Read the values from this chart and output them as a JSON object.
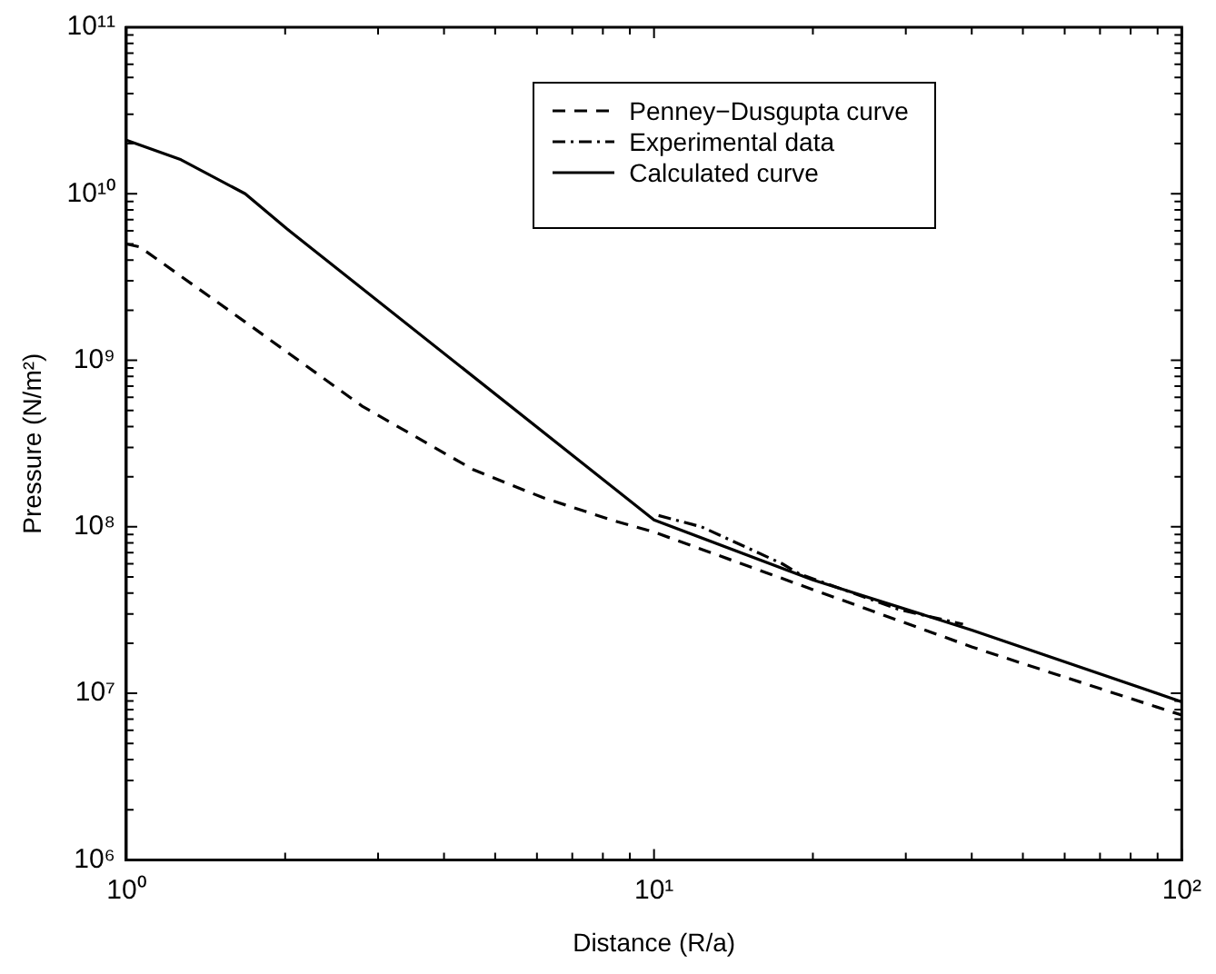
{
  "chart_data": {
    "type": "line",
    "xlabel": "Distance (R/a)",
    "ylabel": "Pressure (N/m²)",
    "log": "xy",
    "legend": "top right",
    "grid": false,
    "xlim": [
      1,
      100
    ],
    "ylim": [
      1000000,
      100000000000
    ],
    "xticks": [
      {
        "value": 1,
        "label": "10⁰"
      },
      {
        "value": 2,
        "label": null
      },
      {
        "value": 3,
        "label": null
      },
      {
        "value": 4,
        "label": null
      },
      {
        "value": 5,
        "label": null
      },
      {
        "value": 6,
        "label": null
      },
      {
        "value": 7,
        "label": null
      },
      {
        "value": 8,
        "label": null
      },
      {
        "value": 9,
        "label": null
      },
      {
        "value": 10,
        "label": "10¹"
      },
      {
        "value": 20,
        "label": null
      },
      {
        "value": 30,
        "label": null
      },
      {
        "value": 40,
        "label": null
      },
      {
        "value": 50,
        "label": null
      },
      {
        "value": 60,
        "label": null
      },
      {
        "value": 70,
        "label": null
      },
      {
        "value": 80,
        "label": null
      },
      {
        "value": 90,
        "label": null
      },
      {
        "value": 100,
        "label": "10²"
      }
    ],
    "yticks": [
      {
        "value": 1000000,
        "label": "10⁶"
      },
      {
        "value": 2000000,
        "label": null
      },
      {
        "value": 3000000,
        "label": null
      },
      {
        "value": 4000000,
        "label": null
      },
      {
        "value": 5000000,
        "label": null
      },
      {
        "value": 6000000,
        "label": null
      },
      {
        "value": 7000000,
        "label": null
      },
      {
        "value": 8000000,
        "label": null
      },
      {
        "value": 9000000,
        "label": null
      },
      {
        "value": 10000000,
        "label": "10⁷"
      },
      {
        "value": 20000000,
        "label": null
      },
      {
        "value": 30000000,
        "label": null
      },
      {
        "value": 40000000,
        "label": null
      },
      {
        "value": 50000000,
        "label": null
      },
      {
        "value": 60000000,
        "label": null
      },
      {
        "value": 70000000,
        "label": null
      },
      {
        "value": 80000000,
        "label": null
      },
      {
        "value": 90000000,
        "label": null
      },
      {
        "value": 100000000,
        "label": "10⁸"
      },
      {
        "value": 200000000,
        "label": null
      },
      {
        "value": 300000000,
        "label": null
      },
      {
        "value": 400000000,
        "label": null
      },
      {
        "value": 500000000,
        "label": null
      },
      {
        "value": 600000000,
        "label": null
      },
      {
        "value": 700000000,
        "label": null
      },
      {
        "value": 800000000,
        "label": null
      },
      {
        "value": 900000000,
        "label": null
      },
      {
        "value": 1000000000,
        "label": "10⁹"
      },
      {
        "value": 2000000000,
        "label": null
      },
      {
        "value": 3000000000,
        "label": null
      },
      {
        "value": 4000000000,
        "label": null
      },
      {
        "value": 5000000000,
        "label": null
      },
      {
        "value": 6000000000,
        "label": null
      },
      {
        "value": 7000000000,
        "label": null
      },
      {
        "value": 8000000000,
        "label": null
      },
      {
        "value": 9000000000,
        "label": null
      },
      {
        "value": 10000000000,
        "label": "10¹⁰"
      },
      {
        "value": 20000000000,
        "label": null
      },
      {
        "value": 30000000000,
        "label": null
      },
      {
        "value": 40000000000,
        "label": null
      },
      {
        "value": 50000000000,
        "label": null
      },
      {
        "value": 60000000000,
        "label": null
      },
      {
        "value": 70000000000,
        "label": null
      },
      {
        "value": 80000000000,
        "label": null
      },
      {
        "value": 90000000000,
        "label": null
      },
      {
        "value": 100000000000,
        "label": "10¹¹"
      }
    ],
    "series": [
      {
        "name": "Penney−Dusgupta curve",
        "color": "#000000",
        "line_style": "dashed",
        "x": [
          1,
          1.06,
          1.68,
          2.8,
          4.55,
          6.15,
          8.3,
          10,
          20,
          40,
          100
        ],
        "values": [
          5000000000,
          4800000000,
          1700000000,
          530000000,
          220000000,
          150000000,
          110000000,
          93000000,
          42000000,
          19000000,
          7400000
        ]
      },
      {
        "name": "Experimental data",
        "color": "#000000",
        "line_style": "dashdot",
        "x": [
          10.2,
          12.3,
          17.5,
          18.9,
          29,
          38.5
        ],
        "values": [
          117000000,
          100000000,
          60000000,
          52000000,
          32000000,
          26000000
        ]
      },
      {
        "name": "Calculated curve",
        "color": "#000000",
        "line_style": "solid",
        "x": [
          1,
          1.27,
          1.68,
          2.01,
          10,
          20,
          40,
          100
        ],
        "values": [
          21000000000,
          16000000000,
          10000000000,
          6200000000,
          110000000,
          48000000,
          24000000,
          8900000
        ]
      }
    ]
  }
}
